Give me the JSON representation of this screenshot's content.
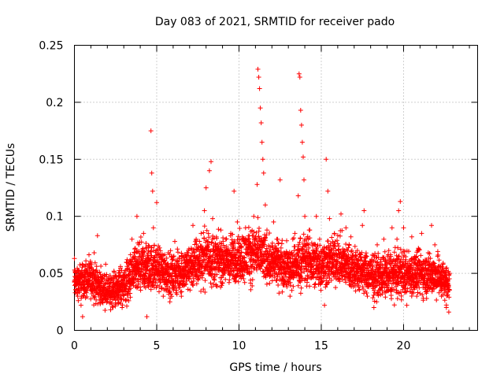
{
  "chart_data": {
    "type": "scatter",
    "title": "Day 083 of 2021, SRMTID for receiver pado",
    "xlabel": "GPS time / hours",
    "ylabel": "SRMTID / TECUs",
    "xlim": [
      0,
      24.5
    ],
    "ylim": [
      0,
      0.25
    ],
    "xticks": [
      0,
      5,
      10,
      15,
      20
    ],
    "xtick_labels": [
      "0",
      "5",
      "10",
      "15",
      "20"
    ],
    "yticks": [
      0,
      0.05,
      0.1,
      0.15,
      0.2,
      0.25
    ],
    "ytick_labels": [
      "0",
      "0.05",
      "0.1",
      "0.15",
      "0.2",
      "0.25"
    ],
    "grid": true,
    "marker": "+",
    "color": "#ff0000",
    "series": [
      {
        "name": "SRMTID",
        "points": [
          [
            0.0,
            0.063
          ],
          [
            0.1,
            0.045
          ],
          [
            0.2,
            0.03
          ],
          [
            0.3,
            0.052
          ],
          [
            0.4,
            0.022
          ],
          [
            0.5,
            0.012
          ],
          [
            0.6,
            0.048
          ],
          [
            0.7,
            0.061
          ],
          [
            0.8,
            0.04
          ],
          [
            0.9,
            0.055
          ],
          [
            1.0,
            0.035
          ],
          [
            1.1,
            0.05
          ],
          [
            1.2,
            0.068
          ],
          [
            1.3,
            0.042
          ],
          [
            1.4,
            0.083
          ],
          [
            1.5,
            0.032
          ],
          [
            1.6,
            0.047
          ],
          [
            1.7,
            0.025
          ],
          [
            1.8,
            0.038
          ],
          [
            1.9,
            0.058
          ],
          [
            2.0,
            0.028
          ],
          [
            2.1,
            0.044
          ],
          [
            2.2,
            0.018
          ],
          [
            2.3,
            0.034
          ],
          [
            2.4,
            0.052
          ],
          [
            2.5,
            0.024
          ],
          [
            2.6,
            0.04
          ],
          [
            2.7,
            0.03
          ],
          [
            2.8,
            0.056
          ],
          [
            2.9,
            0.02
          ],
          [
            3.0,
            0.046
          ],
          [
            3.1,
            0.036
          ],
          [
            3.2,
            0.062
          ],
          [
            3.3,
            0.026
          ],
          [
            3.4,
            0.05
          ],
          [
            3.5,
            0.08
          ],
          [
            3.6,
            0.042
          ],
          [
            3.7,
            0.072
          ],
          [
            3.8,
            0.1
          ],
          [
            3.9,
            0.058
          ],
          [
            4.0,
            0.038
          ],
          [
            4.1,
            0.066
          ],
          [
            4.2,
            0.085
          ],
          [
            4.3,
            0.048
          ],
          [
            4.4,
            0.012
          ],
          [
            4.5,
            0.07
          ],
          [
            4.6,
            0.052
          ],
          [
            4.65,
            0.175
          ],
          [
            4.7,
            0.138
          ],
          [
            4.75,
            0.122
          ],
          [
            4.8,
            0.09
          ],
          [
            4.9,
            0.06
          ],
          [
            5.0,
            0.112
          ],
          [
            5.1,
            0.074
          ],
          [
            5.2,
            0.045
          ],
          [
            5.3,
            0.062
          ],
          [
            5.4,
            0.03
          ],
          [
            5.5,
            0.05
          ],
          [
            5.6,
            0.04
          ],
          [
            5.7,
            0.068
          ],
          [
            5.8,
            0.025
          ],
          [
            5.9,
            0.055
          ],
          [
            6.0,
            0.043
          ],
          [
            6.1,
            0.078
          ],
          [
            6.2,
            0.035
          ],
          [
            6.3,
            0.06
          ],
          [
            6.4,
            0.048
          ],
          [
            6.5,
            0.03
          ],
          [
            6.6,
            0.056
          ],
          [
            6.7,
            0.04
          ],
          [
            6.8,
            0.064
          ],
          [
            6.9,
            0.036
          ],
          [
            7.0,
            0.052
          ],
          [
            7.1,
            0.072
          ],
          [
            7.2,
            0.092
          ],
          [
            7.3,
            0.058
          ],
          [
            7.4,
            0.08
          ],
          [
            7.5,
            0.045
          ],
          [
            7.6,
            0.066
          ],
          [
            7.7,
            0.085
          ],
          [
            7.8,
            0.07
          ],
          [
            7.9,
            0.105
          ],
          [
            8.0,
            0.125
          ],
          [
            8.1,
            0.078
          ],
          [
            8.2,
            0.14
          ],
          [
            8.3,
            0.148
          ],
          [
            8.4,
            0.098
          ],
          [
            8.5,
            0.062
          ],
          [
            8.6,
            0.04
          ],
          [
            8.7,
            0.075
          ],
          [
            8.8,
            0.055
          ],
          [
            8.9,
            0.088
          ],
          [
            9.0,
            0.068
          ],
          [
            9.1,
            0.05
          ],
          [
            9.2,
            0.08
          ],
          [
            9.3,
            0.062
          ],
          [
            9.4,
            0.042
          ],
          [
            9.5,
            0.085
          ],
          [
            9.6,
            0.072
          ],
          [
            9.7,
            0.122
          ],
          [
            9.8,
            0.055
          ],
          [
            9.9,
            0.095
          ],
          [
            10.0,
            0.07
          ],
          [
            10.1,
            0.048
          ],
          [
            10.2,
            0.082
          ],
          [
            10.3,
            0.064
          ],
          [
            10.4,
            0.09
          ],
          [
            10.5,
            0.056
          ],
          [
            10.6,
            0.078
          ],
          [
            10.7,
            0.044
          ],
          [
            10.8,
            0.068
          ],
          [
            10.9,
            0.1
          ],
          [
            11.0,
            0.082
          ],
          [
            11.1,
            0.128
          ],
          [
            11.15,
            0.229
          ],
          [
            11.2,
            0.222
          ],
          [
            11.25,
            0.212
          ],
          [
            11.3,
            0.195
          ],
          [
            11.35,
            0.182
          ],
          [
            11.4,
            0.165
          ],
          [
            11.45,
            0.15
          ],
          [
            11.5,
            0.138
          ],
          [
            11.6,
            0.11
          ],
          [
            11.7,
            0.088
          ],
          [
            11.8,
            0.066
          ],
          [
            11.9,
            0.052
          ],
          [
            12.0,
            0.074
          ],
          [
            12.1,
            0.095
          ],
          [
            12.2,
            0.06
          ],
          [
            12.3,
            0.08
          ],
          [
            12.4,
            0.07
          ],
          [
            12.5,
            0.132
          ],
          [
            12.6,
            0.076
          ],
          [
            12.7,
            0.05
          ],
          [
            12.8,
            0.064
          ],
          [
            12.9,
            0.04
          ],
          [
            13.0,
            0.056
          ],
          [
            13.1,
            0.03
          ],
          [
            13.2,
            0.068
          ],
          [
            13.3,
            0.046
          ],
          [
            13.4,
            0.085
          ],
          [
            13.5,
            0.06
          ],
          [
            13.6,
            0.118
          ],
          [
            13.65,
            0.225
          ],
          [
            13.7,
            0.222
          ],
          [
            13.75,
            0.193
          ],
          [
            13.8,
            0.18
          ],
          [
            13.85,
            0.165
          ],
          [
            13.9,
            0.152
          ],
          [
            13.95,
            0.132
          ],
          [
            14.0,
            0.1
          ],
          [
            14.1,
            0.076
          ],
          [
            14.2,
            0.058
          ],
          [
            14.3,
            0.088
          ],
          [
            14.4,
            0.046
          ],
          [
            14.5,
            0.07
          ],
          [
            14.6,
            0.038
          ],
          [
            14.7,
            0.1
          ],
          [
            14.8,
            0.062
          ],
          [
            14.9,
            0.08
          ],
          [
            15.0,
            0.042
          ],
          [
            15.1,
            0.056
          ],
          [
            15.2,
            0.022
          ],
          [
            15.3,
            0.15
          ],
          [
            15.4,
            0.122
          ],
          [
            15.5,
            0.098
          ],
          [
            15.6,
            0.07
          ],
          [
            15.7,
            0.05
          ],
          [
            15.8,
            0.085
          ],
          [
            15.9,
            0.06
          ],
          [
            16.0,
            0.076
          ],
          [
            16.1,
            0.045
          ],
          [
            16.2,
            0.102
          ],
          [
            16.3,
            0.066
          ],
          [
            16.4,
            0.052
          ],
          [
            16.5,
            0.09
          ],
          [
            16.6,
            0.07
          ],
          [
            16.7,
            0.04
          ],
          [
            16.8,
            0.082
          ],
          [
            16.9,
            0.058
          ],
          [
            17.0,
            0.062
          ],
          [
            17.1,
            0.048
          ],
          [
            17.2,
            0.07
          ],
          [
            17.3,
            0.036
          ],
          [
            17.4,
            0.055
          ],
          [
            17.5,
            0.092
          ],
          [
            17.6,
            0.105
          ],
          [
            17.7,
            0.064
          ],
          [
            17.8,
            0.03
          ],
          [
            17.9,
            0.05
          ],
          [
            18.0,
            0.04
          ],
          [
            18.1,
            0.066
          ],
          [
            18.2,
            0.02
          ],
          [
            18.3,
            0.052
          ],
          [
            18.4,
            0.075
          ],
          [
            18.5,
            0.035
          ],
          [
            18.6,
            0.06
          ],
          [
            18.7,
            0.046
          ],
          [
            18.8,
            0.08
          ],
          [
            18.9,
            0.058
          ],
          [
            19.0,
            0.038
          ],
          [
            19.1,
            0.07
          ],
          [
            19.2,
            0.05
          ],
          [
            19.3,
            0.09
          ],
          [
            19.4,
            0.062
          ],
          [
            19.5,
            0.044
          ],
          [
            19.6,
            0.08
          ],
          [
            19.7,
            0.105
          ],
          [
            19.8,
            0.113
          ],
          [
            19.9,
            0.068
          ],
          [
            20.0,
            0.09
          ],
          [
            20.1,
            0.04
          ],
          [
            20.2,
            0.022
          ],
          [
            20.3,
            0.055
          ],
          [
            20.4,
            0.034
          ],
          [
            20.5,
            0.082
          ],
          [
            20.6,
            0.048
          ],
          [
            20.7,
            0.062
          ],
          [
            20.8,
            0.03
          ],
          [
            20.9,
            0.072
          ],
          [
            21.0,
            0.05
          ],
          [
            21.1,
            0.085
          ],
          [
            21.2,
            0.04
          ],
          [
            21.3,
            0.06
          ],
          [
            21.4,
            0.028
          ],
          [
            21.5,
            0.068
          ],
          [
            21.6,
            0.045
          ],
          [
            21.7,
            0.092
          ],
          [
            21.8,
            0.058
          ],
          [
            21.9,
            0.075
          ],
          [
            22.0,
            0.04
          ],
          [
            22.1,
            0.066
          ],
          [
            22.2,
            0.05
          ],
          [
            22.3,
            0.03
          ],
          [
            22.4,
            0.058
          ],
          [
            22.5,
            0.042
          ],
          [
            22.6,
            0.02
          ],
          [
            22.7,
            0.036
          ],
          [
            22.75,
            0.016
          ],
          [
            22.8,
            0.05
          ]
        ],
        "band": {
          "hours": [
            0,
            1,
            2,
            3,
            4,
            5,
            6,
            7,
            8,
            9,
            10,
            11,
            12,
            13,
            14,
            15,
            16,
            17,
            18,
            19,
            20,
            21,
            22,
            22.8
          ],
          "center": [
            0.042,
            0.045,
            0.033,
            0.04,
            0.055,
            0.055,
            0.048,
            0.055,
            0.065,
            0.06,
            0.063,
            0.068,
            0.06,
            0.055,
            0.062,
            0.058,
            0.062,
            0.054,
            0.048,
            0.048,
            0.05,
            0.05,
            0.048,
            0.04
          ],
          "spread": [
            0.015,
            0.017,
            0.014,
            0.018,
            0.023,
            0.02,
            0.018,
            0.02,
            0.025,
            0.02,
            0.022,
            0.025,
            0.02,
            0.02,
            0.024,
            0.022,
            0.022,
            0.02,
            0.018,
            0.02,
            0.02,
            0.02,
            0.018,
            0.015
          ]
        }
      }
    ]
  }
}
